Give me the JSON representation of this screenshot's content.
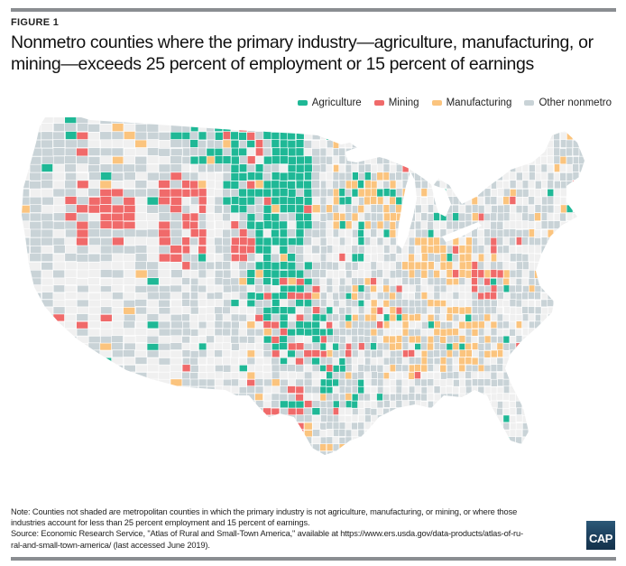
{
  "figure_label": "FIGURE 1",
  "title": "Nonmetro counties where the primary industry—agriculture, manufacturing, or mining—exceeds 25 percent of employment or 15 percent of earnings",
  "legend": [
    {
      "key": "agriculture",
      "label": "Agriculture",
      "color": "#1fb896"
    },
    {
      "key": "mining",
      "label": "Mining",
      "color": "#f06a6a"
    },
    {
      "key": "manufacturing",
      "label": "Manufacturing",
      "color": "#fbc47e"
    },
    {
      "key": "other",
      "label": "Other nonmetro",
      "color": "#c9d3d7"
    }
  ],
  "metro_color": "#f0f0f0",
  "note_lines": [
    "Note: Counties not shaded are metropolitan counties in which the primary industry is not agriculture, manufacturing, or mining, or where those",
    "industries account for less than 25 percent employment and 15 percent of earnings.",
    "Source: Economic Research Service, \"Atlas of Rural and Small-Town America,\" available at https://www.ers.usda.gov/data-products/atlas-of-ru-",
    "ral-and-small-town-america/ (last accessed June 2019)."
  ],
  "logo_text": "CAP",
  "map_data": {
    "type": "choropleth",
    "subject": "U.S. nonmetro counties by primary industry",
    "regions": [
      {
        "area": "Northern Great Plains (Dakotas, Nebraska, Kansas)",
        "dominant": "agriculture"
      },
      {
        "area": "Montana Hi-Line / Eastern Washington / Idaho",
        "dominant": "agriculture"
      },
      {
        "area": "Wyoming, Nevada, Western Colorado, Utah",
        "dominant": "mining"
      },
      {
        "area": "West Texas / Oklahoma / Eastern New Mexico",
        "dominant": "mining"
      },
      {
        "area": "Western North Dakota (Bakken)",
        "dominant": "mining"
      },
      {
        "area": "Central Appalachia (Eastern Kentucky, West Virginia)",
        "dominant": "mining"
      },
      {
        "area": "South Texas",
        "dominant": "mining"
      },
      {
        "area": "Upper Midwest / Great Lakes (Wisconsin, Michigan, Indiana, Ohio)",
        "dominant": "manufacturing"
      },
      {
        "area": "Southeast (Tennessee, Alabama, Georgia, Carolinas)",
        "dominant": "manufacturing"
      },
      {
        "area": "Northern Maine",
        "dominant": "manufacturing"
      },
      {
        "area": "Pacific Coast, Southwest, Northeast, Florida",
        "dominant": "other"
      }
    ]
  }
}
